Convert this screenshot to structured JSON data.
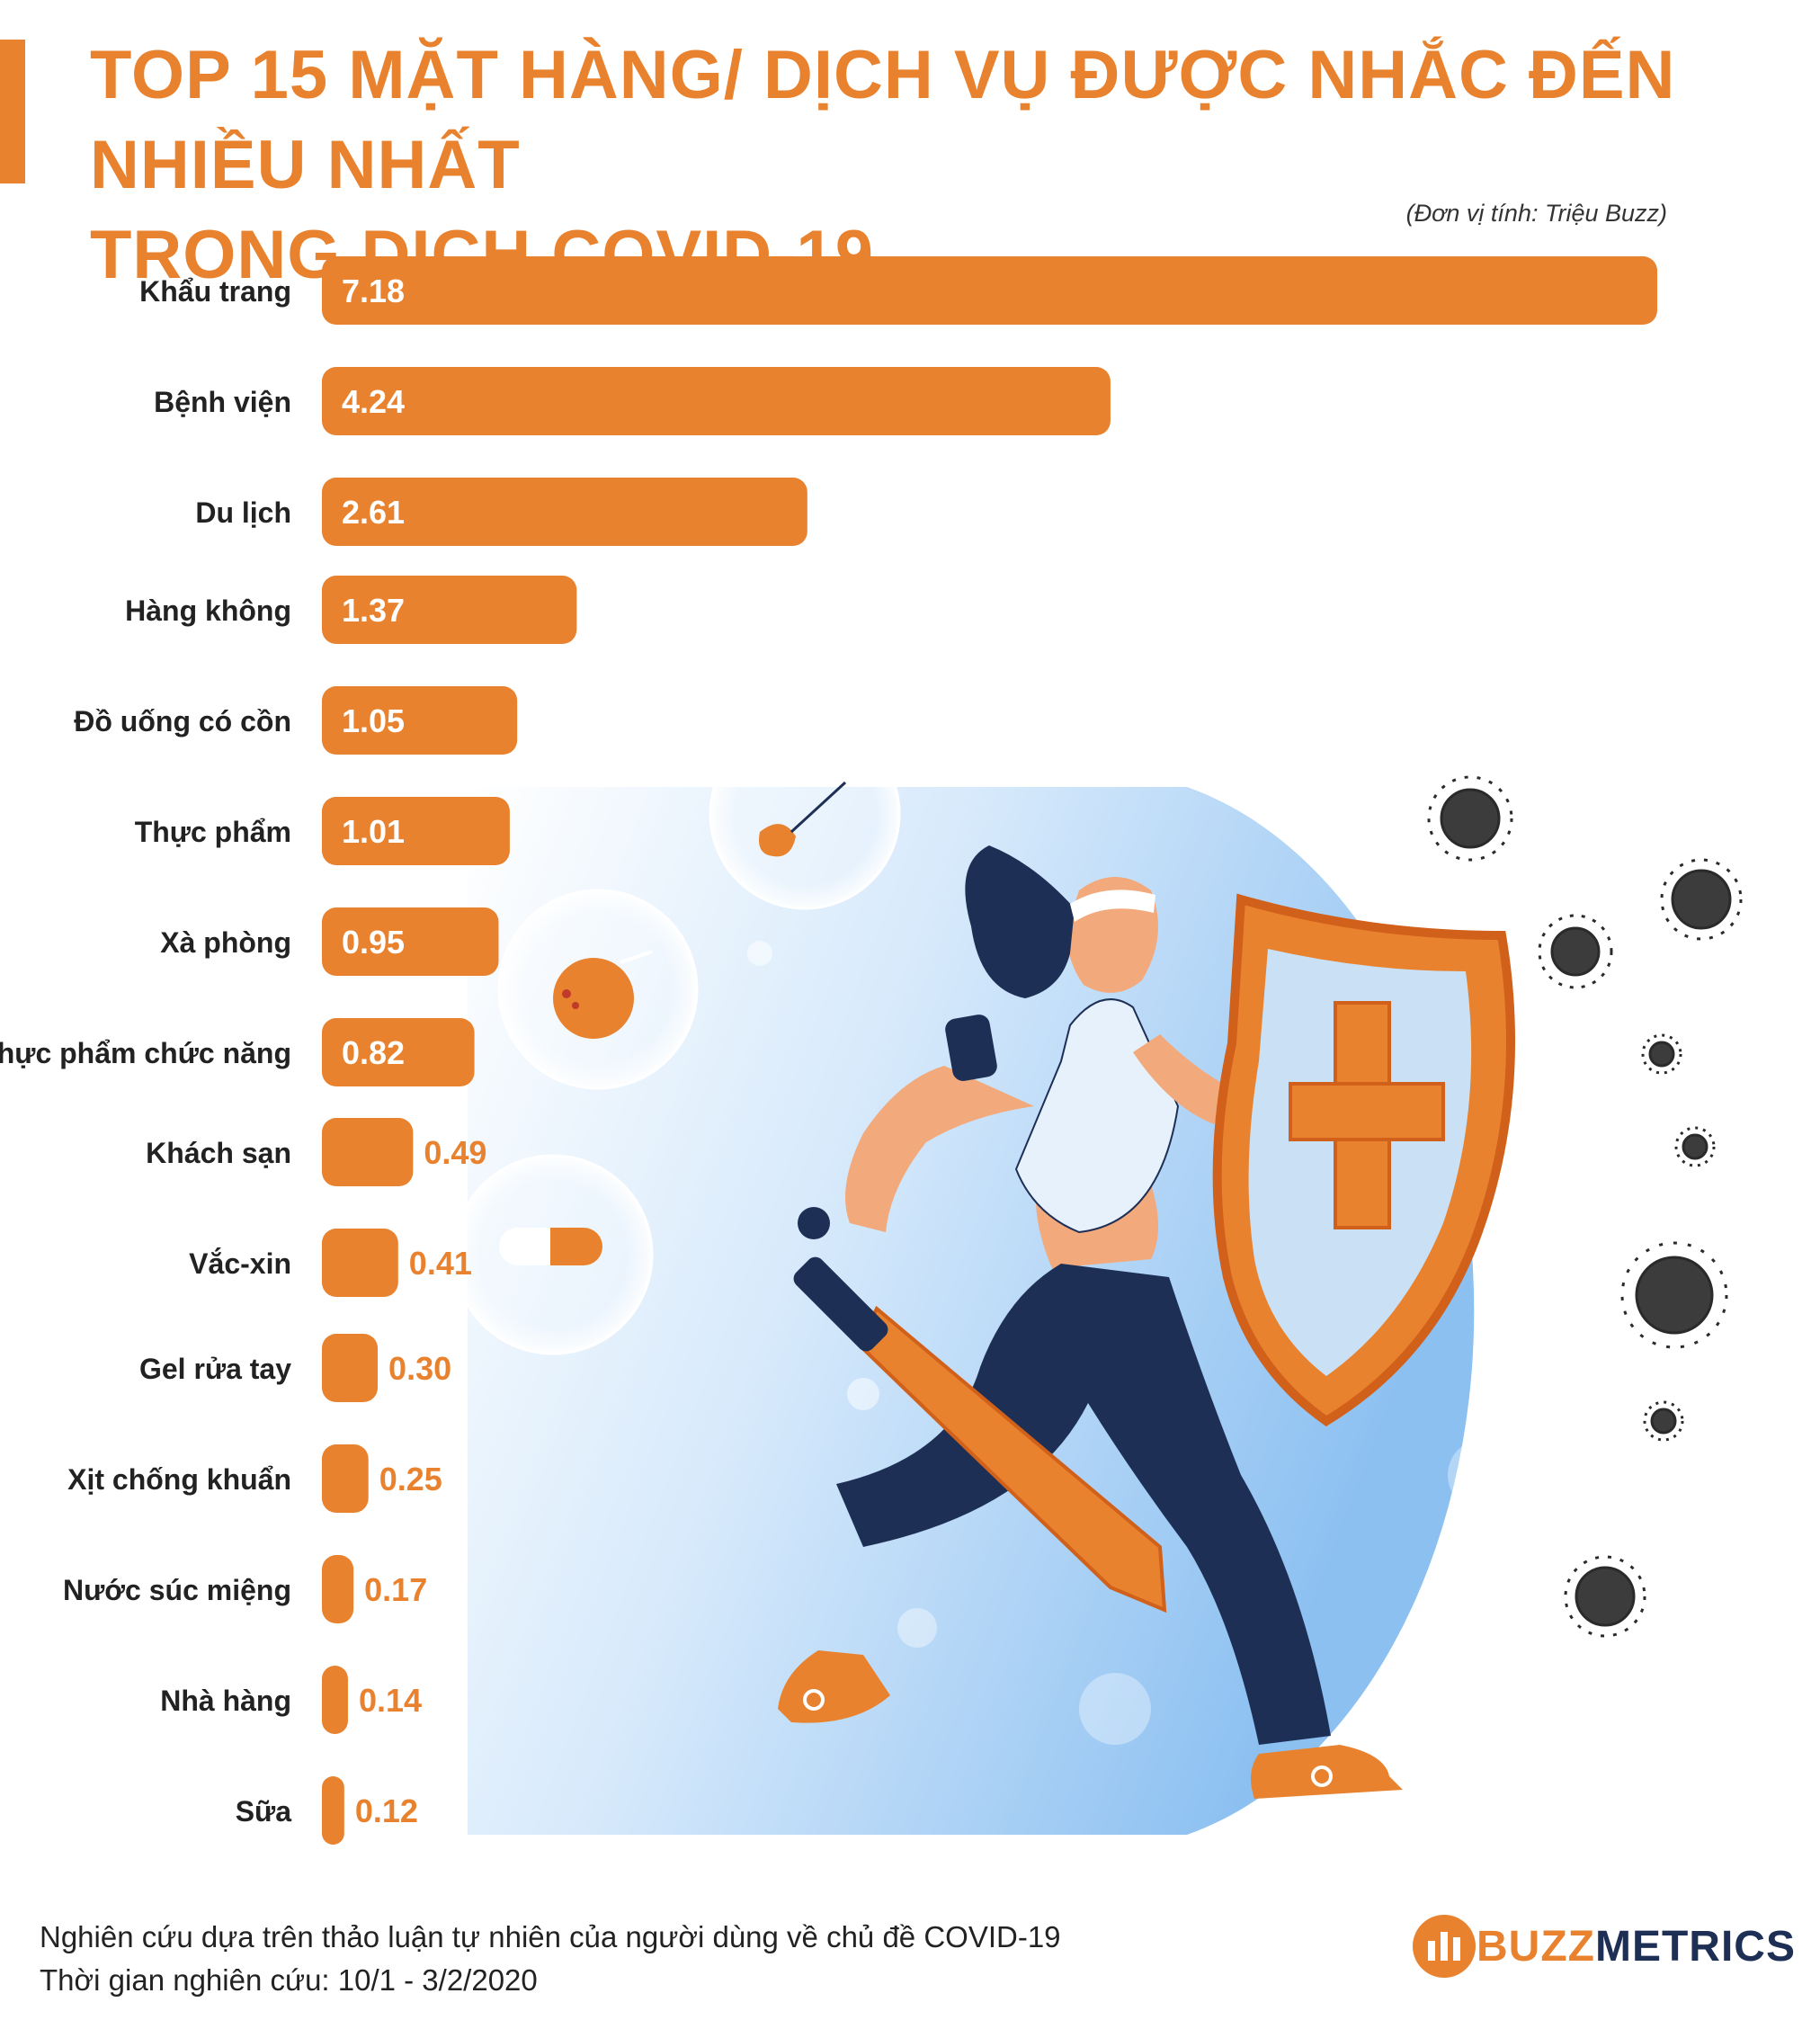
{
  "title_lines": [
    "TOP 15 MẶT HÀNG/ DỊCH VỤ ĐƯỢC NHẮC ĐẾN NHIỀU NHẤT",
    "TRONG DỊCH COVID-19"
  ],
  "unit_note": "(Đơn vị tính: Triệu Buzz)",
  "chart_data": {
    "type": "bar",
    "orientation": "horizontal",
    "title": "TOP 15 MẶT HÀNG/ DỊCH VỤ ĐƯỢC NHẮC ĐẾN NHIỀU NHẤT TRONG DỊCH COVID-19",
    "unit": "Triệu Buzz",
    "categories": [
      "Khẩu trang",
      "Bệnh viện",
      "Du lịch",
      "Hàng không",
      "Đồ uống có cồn",
      "Thực phẩm",
      "Xà phòng",
      "Thực phẩm chức năng",
      "Khách sạn",
      "Vắc-xin",
      "Gel rửa tay",
      "Xịt chống khuẩn",
      "Nước súc miệng",
      "Nhà hàng",
      "Sữa"
    ],
    "values": [
      7.18,
      4.24,
      2.61,
      1.37,
      1.05,
      1.01,
      0.95,
      0.82,
      0.49,
      0.41,
      0.3,
      0.25,
      0.17,
      0.14,
      0.12
    ],
    "data_labels": [
      "7.18",
      "4.24",
      "2.61",
      "1.37",
      "1.05",
      "1.01",
      "0.95",
      "0.82",
      "0.49",
      "0.41",
      "0.30",
      "0.25",
      "0.17",
      "0.14",
      "0.12"
    ],
    "xlim": [
      0,
      7.18
    ],
    "grid": false,
    "legend": "none",
    "bar_color": "#e8822e"
  },
  "footer": {
    "line1": "Nghiên cứu dựa trên thảo luận tự nhiên của người dùng về chủ đề COVID-19",
    "line2": "Thời gian nghiên cứu: 10/1 - 3/2/2020"
  },
  "logo": {
    "part1": "BUZZ",
    "part2": "METRICS"
  },
  "colors": {
    "accent": "#e8822e",
    "navy": "#1e2f55",
    "sky": "#9fcaf3"
  },
  "illustration": "woman-with-sword-and-shield-fighting-virus"
}
